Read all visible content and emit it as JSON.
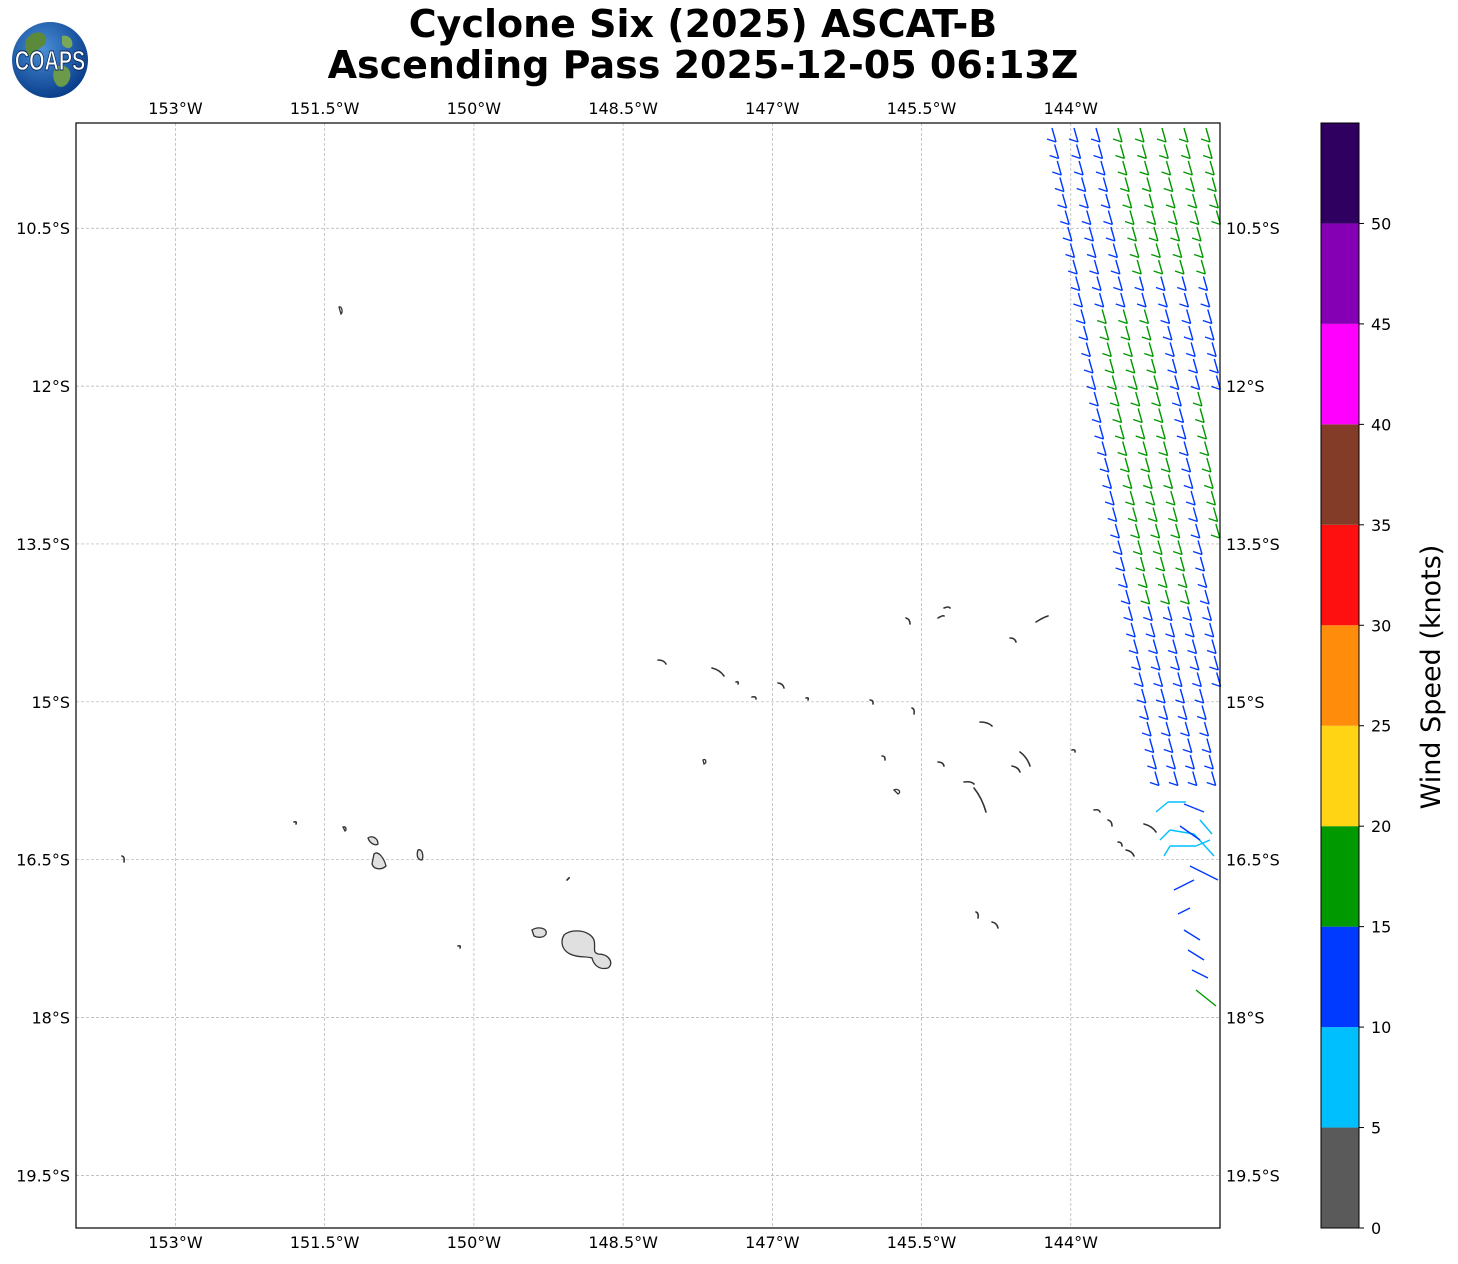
{
  "title": {
    "line1": "Cyclone Six (2025) ASCAT-B",
    "line2": "Ascending Pass 2025-12-05 06:13Z"
  },
  "logo": {
    "text": "COAPS",
    "icon": "globe-logo-icon"
  },
  "map": {
    "lon_range": [
      -154,
      -142.5
    ],
    "lat_range": [
      -20,
      -9.5
    ],
    "lon_ticks": [
      {
        "value": -153,
        "label": "153°W"
      },
      {
        "value": -151.5,
        "label": "151.5°W"
      },
      {
        "value": -150,
        "label": "150°W"
      },
      {
        "value": -148.5,
        "label": "148.5°W"
      },
      {
        "value": -147,
        "label": "147°W"
      },
      {
        "value": -145.5,
        "label": "145.5°W"
      },
      {
        "value": -144,
        "label": "144°W"
      }
    ],
    "lat_ticks": [
      {
        "value": -10.5,
        "label": "10.5°S"
      },
      {
        "value": -12,
        "label": "12°S"
      },
      {
        "value": -13.5,
        "label": "13.5°S"
      },
      {
        "value": -15,
        "label": "15°S"
      },
      {
        "value": -16.5,
        "label": "16.5°S"
      },
      {
        "value": -18,
        "label": "18°S"
      },
      {
        "value": -19.5,
        "label": "19.5°S"
      }
    ],
    "grid": "dashed",
    "land_color": "#e0e0e0",
    "coast_color": "#333333"
  },
  "colorbar": {
    "label": "Wind Speed (knots)",
    "bins": [
      {
        "min": 0,
        "max": 5,
        "color": "#5a5a5a"
      },
      {
        "min": 5,
        "max": 10,
        "color": "#00bfff"
      },
      {
        "min": 10,
        "max": 15,
        "color": "#0039ff"
      },
      {
        "min": 15,
        "max": 20,
        "color": "#009900"
      },
      {
        "min": 20,
        "max": 25,
        "color": "#ffd414"
      },
      {
        "min": 25,
        "max": 30,
        "color": "#ff8c0a"
      },
      {
        "min": 30,
        "max": 35,
        "color": "#ff1010"
      },
      {
        "min": 35,
        "max": 40,
        "color": "#823c28"
      },
      {
        "min": 40,
        "max": 45,
        "color": "#ff00ff"
      },
      {
        "min": 45,
        "max": 50,
        "color": "#8500b5"
      },
      {
        "min": 50,
        "max": 55,
        "color": "#2f005f"
      }
    ],
    "tick_labels": [
      "0",
      "5",
      "10",
      "15",
      "20",
      "25",
      "30",
      "35",
      "40",
      "45",
      "50"
    ]
  }
}
